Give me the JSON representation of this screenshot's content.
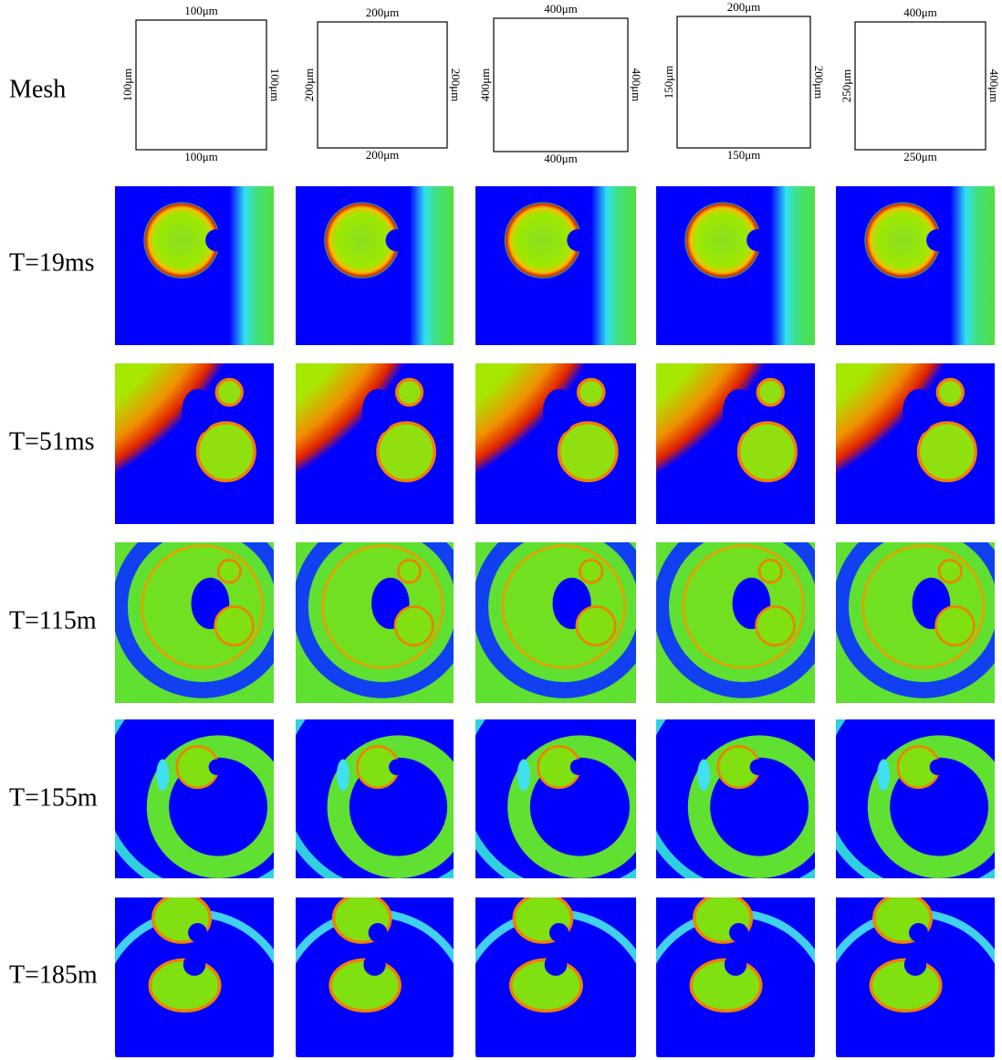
{
  "row_labels": [
    "Mesh",
    "T=19ms",
    "T=51ms",
    "T=115m",
    "T=155m",
    "T=185m"
  ],
  "meshes": [
    {
      "top": "100μm",
      "bottom": "100μm",
      "left": "100μm",
      "right": "100μm"
    },
    {
      "top": "200μm",
      "bottom": "200μm",
      "left": "200μm",
      "right": "200μm"
    },
    {
      "top": "400μm",
      "bottom": "400μm",
      "left": "400μm",
      "right": "400μm"
    },
    {
      "top": "200μm",
      "bottom": "150μm",
      "left": "150μm",
      "right": "200μm"
    },
    {
      "top": "400μm",
      "bottom": "250μm",
      "left": "250μm",
      "right": "400μm"
    }
  ]
}
